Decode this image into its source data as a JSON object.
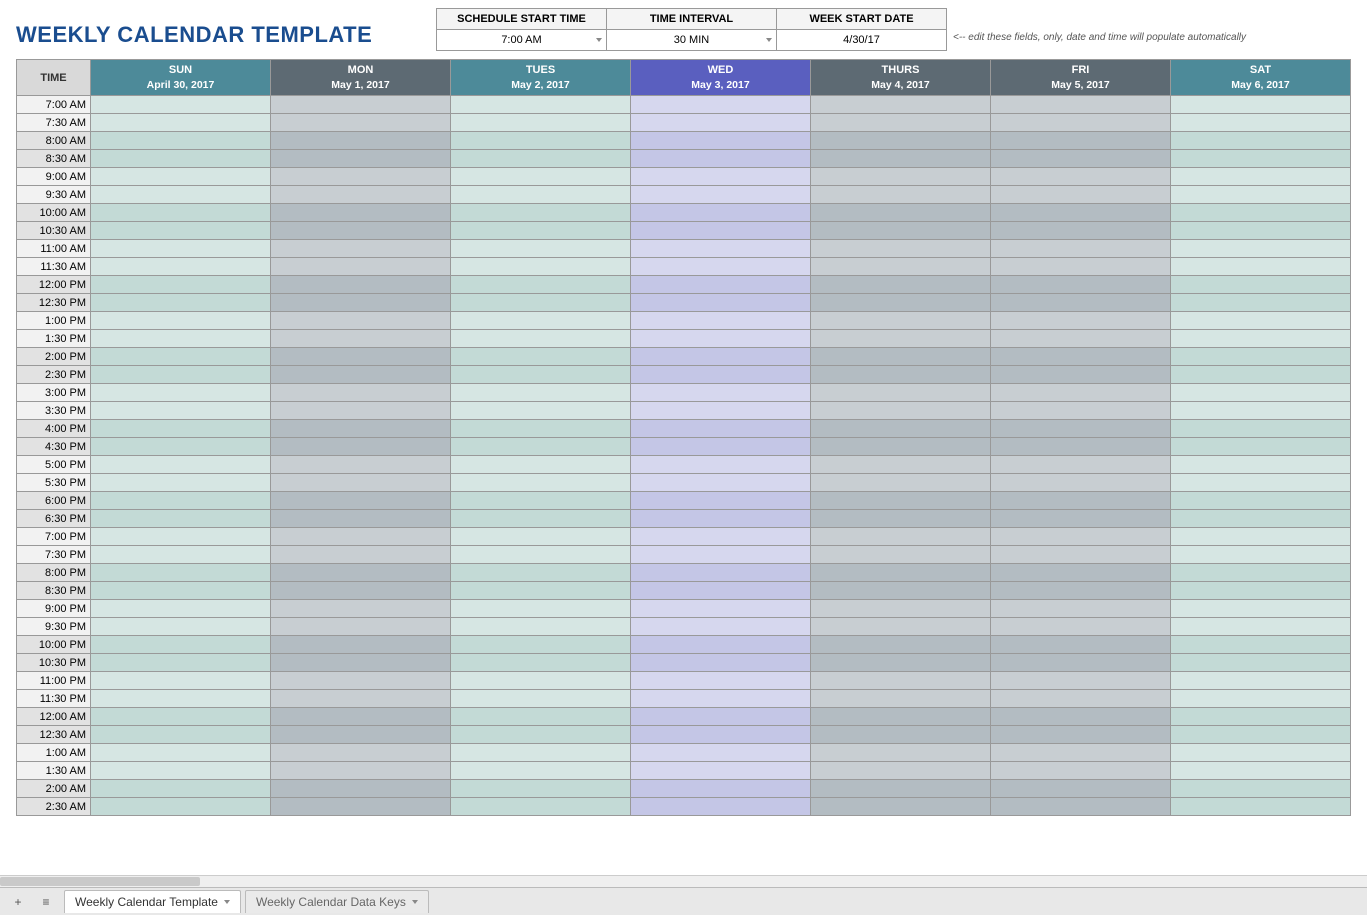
{
  "title": "WEEKLY CALENDAR TEMPLATE",
  "settings": {
    "headers": [
      "SCHEDULE START TIME",
      "TIME INTERVAL",
      "WEEK START DATE"
    ],
    "values": [
      "7:00 AM",
      "30 MIN",
      "4/30/17"
    ],
    "hint": "<-- edit these fields, only, date and time will populate automatically"
  },
  "time_label": "TIME",
  "days": [
    {
      "name": "SUN",
      "date": "April 30, 2017",
      "header_bg": "#4d8a99"
    },
    {
      "name": "MON",
      "date": "May 1, 2017",
      "header_bg": "#5d6a73"
    },
    {
      "name": "TUES",
      "date": "May 2, 2017",
      "header_bg": "#4d8a99"
    },
    {
      "name": "WED",
      "date": "May 3, 2017",
      "header_bg": "#5a5fbf"
    },
    {
      "name": "THURS",
      "date": "May 4, 2017",
      "header_bg": "#5d6a73"
    },
    {
      "name": "FRI",
      "date": "May 5, 2017",
      "header_bg": "#5d6a73"
    },
    {
      "name": "SAT",
      "date": "May 6, 2017",
      "header_bg": "#4d8a99"
    }
  ],
  "time_slots": [
    "7:00 AM",
    "7:30 AM",
    "8:00 AM",
    "8:30 AM",
    "9:00 AM",
    "9:30 AM",
    "10:00 AM",
    "10:30 AM",
    "11:00 AM",
    "11:30 AM",
    "12:00 PM",
    "12:30 PM",
    "1:00 PM",
    "1:30 PM",
    "2:00 PM",
    "2:30 PM",
    "3:00 PM",
    "3:30 PM",
    "4:00 PM",
    "4:30 PM",
    "5:00 PM",
    "5:30 PM",
    "6:00 PM",
    "6:30 PM",
    "7:00 PM",
    "7:30 PM",
    "8:00 PM",
    "8:30 PM",
    "9:00 PM",
    "9:30 PM",
    "10:00 PM",
    "10:30 PM",
    "11:00 PM",
    "11:30 PM",
    "12:00 AM",
    "12:30 AM",
    "1:00 AM",
    "1:30 AM",
    "2:00 AM",
    "2:30 AM"
  ],
  "column_colors": {
    "sun": {
      "light": "#d6e6e3",
      "dark": "#c3dad6"
    },
    "mon": {
      "light": "#c8ced2",
      "dark": "#b3bcc2"
    },
    "tues": {
      "light": "#d6e6e3",
      "dark": "#c3dad6"
    },
    "wed": {
      "light": "#d6d7ee",
      "dark": "#c4c6e6"
    },
    "thurs": {
      "light": "#c8ced2",
      "dark": "#b3bcc2"
    },
    "fri": {
      "light": "#c8ced2",
      "dark": "#b3bcc2"
    },
    "sat": {
      "light": "#d6e6e3",
      "dark": "#c3dad6"
    }
  },
  "time_cell_colors": {
    "light": "#f2f2f2",
    "dark": "#e2e2e2"
  },
  "band_size": 2,
  "tabs": [
    {
      "label": "Weekly Calendar Template",
      "active": true
    },
    {
      "label": "Weekly Calendar Data Keys",
      "active": false
    }
  ]
}
